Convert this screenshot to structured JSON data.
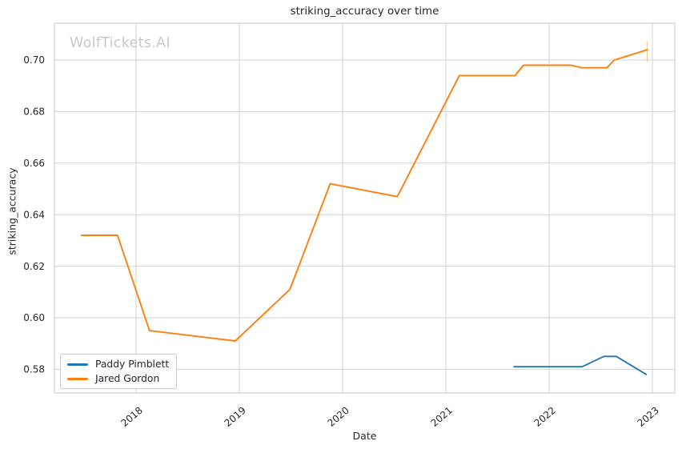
{
  "title": "striking_accuracy over time",
  "watermark": "WolfTickets.AI",
  "xlabel": "Date",
  "ylabel": "striking_accuracy",
  "legend": {
    "items": [
      {
        "label": "Paddy Pimblett",
        "color": "#1f77b4"
      },
      {
        "label": "Jared Gordon",
        "color": "#ff7f0e"
      }
    ]
  },
  "chart_data": {
    "type": "line",
    "title": "striking_accuracy over time",
    "xlabel": "Date",
    "ylabel": "striking_accuracy",
    "xlim": [
      2017.209,
      2023.217
    ],
    "ylim": [
      0.5708,
      0.7143
    ],
    "xticks": [
      2018,
      2019,
      2020,
      2021,
      2022,
      2023
    ],
    "yticks": [
      0.58,
      0.6,
      0.62,
      0.64,
      0.66,
      0.68,
      0.7
    ],
    "grid": true,
    "legend_position": "lower left",
    "series": [
      {
        "name": "Paddy Pimblett",
        "color": "#1f77b4",
        "x": [
          2021.66,
          2022.32,
          2022.53,
          2022.65,
          2022.94
        ],
        "y": [
          0.581,
          0.581,
          0.585,
          0.585,
          0.578
        ]
      },
      {
        "name": "Jared Gordon",
        "color": "#ff7f0e",
        "x": [
          2017.47,
          2017.82,
          2018.13,
          2018.96,
          2019.49,
          2019.88,
          2020.53,
          2021.13,
          2021.67,
          2021.75,
          2022.21,
          2022.32,
          2022.56,
          2022.63,
          2022.95
        ],
        "y": [
          0.632,
          0.632,
          0.595,
          0.591,
          0.611,
          0.652,
          0.647,
          0.694,
          0.694,
          0.698,
          0.698,
          0.697,
          0.697,
          0.7,
          0.704
        ]
      }
    ],
    "end_marker": {
      "x": 2022.95,
      "y1": 0.7072,
      "y2": 0.6994,
      "color": "#ff7f0e",
      "opacity": 0.45
    }
  }
}
